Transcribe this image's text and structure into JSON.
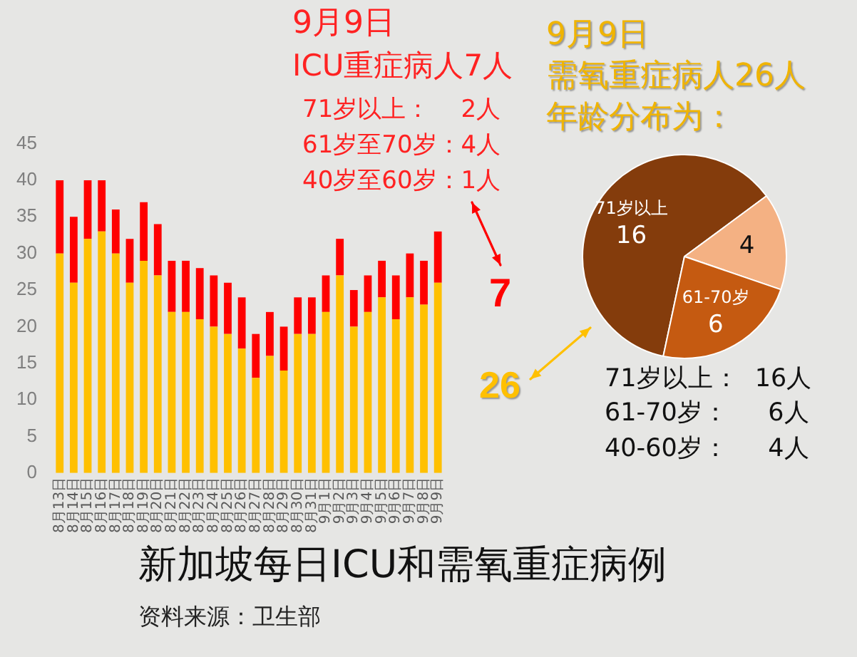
{
  "chart_data": [
    {
      "type": "bar",
      "title": "新加坡每日ICU和需氧重症病例",
      "categories": [
        "8月13日",
        "8月14日",
        "8月15日",
        "8月16日",
        "8月17日",
        "8月18日",
        "8月19日",
        "8月20日",
        "8月21日",
        "8月22日",
        "8月23日",
        "8月24日",
        "8月25日",
        "8月26日",
        "8月27日",
        "8月28日",
        "8月29日",
        "8月30日",
        "8月31日",
        "9月1日",
        "9月2日",
        "9月3日",
        "9月4日",
        "9月5日",
        "9月6日",
        "9月7日",
        "9月8日",
        "9月9日"
      ],
      "series": [
        {
          "color": "#ffc000",
          "values": [
            30,
            26,
            32,
            33,
            30,
            26,
            29,
            27,
            22,
            22,
            21,
            20,
            19,
            17,
            13,
            16,
            14,
            19,
            19,
            22,
            27,
            20,
            22,
            24,
            21,
            24,
            23,
            26
          ]
        },
        {
          "color": "#ff0000",
          "values": [
            10,
            9,
            8,
            7,
            6,
            6,
            8,
            7,
            7,
            7,
            7,
            7,
            7,
            7,
            6,
            6,
            6,
            5,
            5,
            5,
            5,
            5,
            5,
            5,
            6,
            6,
            6,
            7
          ]
        }
      ],
      "stacked": true,
      "ylim": [
        0,
        45
      ],
      "yticks": [
        0,
        5,
        10,
        15,
        20,
        25,
        30,
        35,
        40,
        45
      ],
      "annotations": [
        "9月9日",
        "ICU重症病人7人",
        "71岁以上：    2人",
        "61岁至70岁：4人",
        "40岁至60岁：1人",
        "7",
        "资料来源：卫生部"
      ]
    },
    {
      "type": "pie",
      "title": "9月9日",
      "subtitle": "需氧重症病人26人年龄分布为：",
      "categories": [
        "71岁以上",
        null,
        "61-70岁"
      ],
      "values": [
        16,
        4,
        6
      ],
      "colors": [
        "#843c0c",
        "#f4b183",
        "#c55a11"
      ],
      "data_labels": true,
      "annotations": [
        "26",
        "71岁以上：  16人",
        "61-70岁：     6人",
        "40-60岁：     4人"
      ]
    }
  ]
}
